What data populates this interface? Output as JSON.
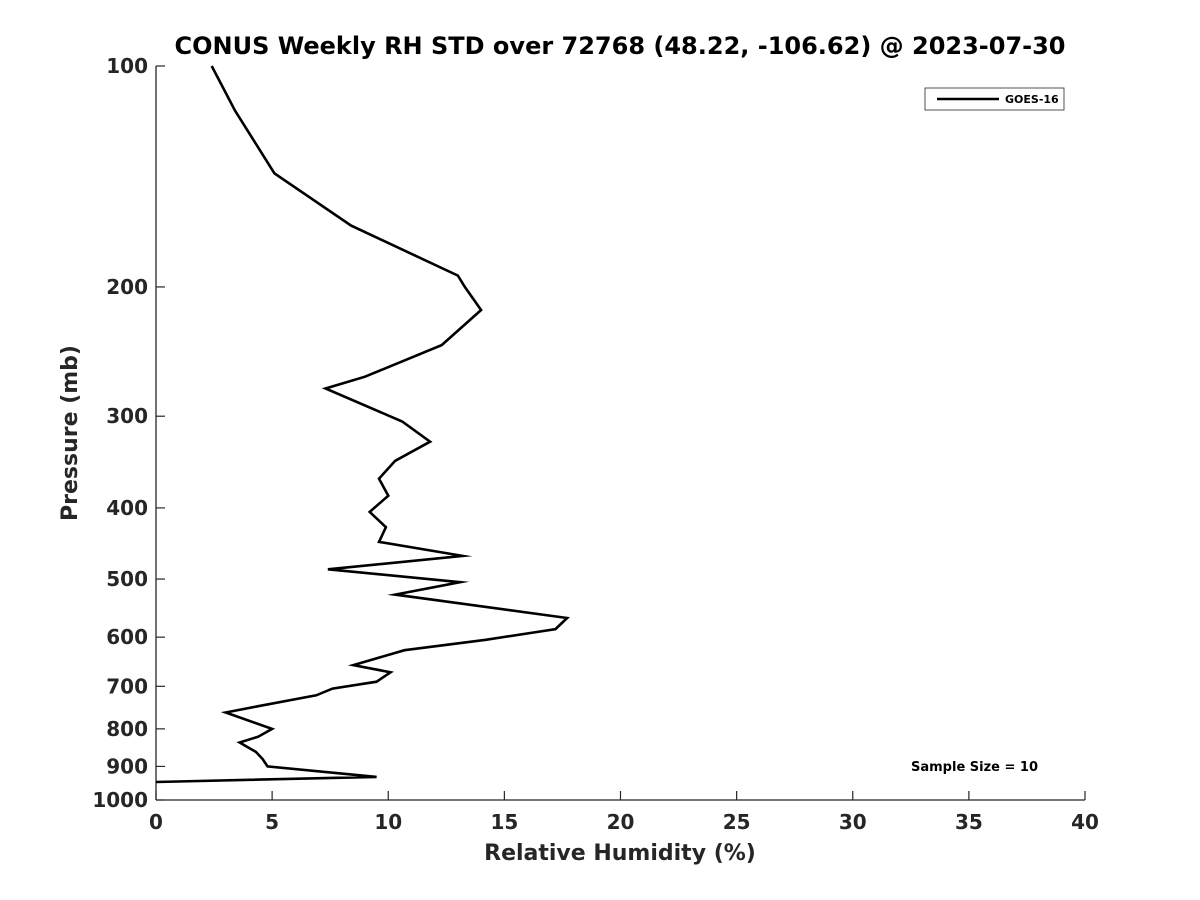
{
  "chart_data": {
    "type": "line",
    "title": "CONUS Weekly RH STD over 72768 (48.22, -106.62) @ 2023-07-30",
    "xlabel": "Relative Humidity (%)",
    "ylabel": "Pressure (mb)",
    "xlim": [
      0,
      40
    ],
    "ylim": [
      1000,
      100
    ],
    "yscale": "log",
    "y_reversed": true,
    "xticks": [
      0,
      5,
      10,
      15,
      20,
      25,
      30,
      35,
      40
    ],
    "yticks": [
      100,
      200,
      300,
      400,
      500,
      600,
      700,
      800,
      900,
      1000
    ],
    "grid": false,
    "legend_position": "top-right",
    "series": [
      {
        "name": "GOES-16",
        "color": "#000000",
        "x": [
          2.4,
          3.4,
          5.1,
          8.4,
          13.0,
          13.3,
          14.0,
          12.3,
          9.0,
          7.3,
          10.6,
          11.8,
          10.3,
          9.6,
          10.0,
          9.2,
          9.9,
          9.6,
          13.2,
          7.4,
          13.1,
          10.3,
          17.7,
          17.2,
          14.2,
          10.7,
          8.5,
          10.1,
          9.5,
          7.6,
          6.9,
          4.4,
          3.0,
          5.0,
          4.4,
          3.6,
          4.3,
          4.6,
          4.8,
          9.5,
          0.0
        ],
        "y": [
          100,
          115,
          140,
          165,
          193,
          200,
          215,
          240,
          265,
          275,
          305,
          325,
          345,
          365,
          385,
          405,
          425,
          445,
          465,
          485,
          505,
          525,
          565,
          585,
          605,
          625,
          655,
          670,
          690,
          705,
          720,
          745,
          760,
          800,
          820,
          835,
          860,
          880,
          900,
          930,
          945
        ]
      }
    ],
    "annotations": [
      "Sample Size = 10"
    ]
  }
}
